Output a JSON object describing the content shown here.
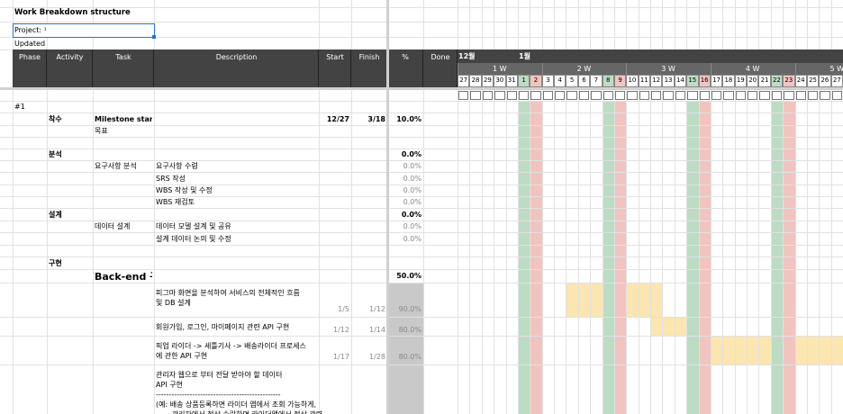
{
  "sheet": {
    "title": "Work Breakdown structure",
    "project": "Project: ¹",
    "updated": "Updated"
  },
  "header": {
    "columns": [
      "Phase",
      "Activity",
      "Task",
      "Description",
      "Start",
      "Finish",
      "%",
      "Done"
    ],
    "months": [
      "12월",
      "1월"
    ],
    "weeks": [
      "1 W",
      "2 W",
      "3 W",
      "4 W",
      "5 W"
    ],
    "days": [
      "27",
      "28",
      "29",
      "30",
      "31",
      "1",
      "2",
      "3",
      "4",
      "5",
      "6",
      "7",
      "8",
      "9",
      "10",
      "11",
      "12",
      "13",
      "14",
      "15",
      "16",
      "17",
      "18",
      "19",
      "20",
      "21",
      "22",
      "23",
      "24",
      "25",
      "26",
      "27"
    ]
  },
  "rows": [
    {
      "phase": "#1"
    },
    {
      "activity": "착수",
      "task": "Milestone start",
      "start": "12/27",
      "finish": "3/18",
      "percent": "10.0%"
    },
    {
      "task": "목표"
    },
    {
      "activity": "분석",
      "percent": "0.0%"
    },
    {
      "task": "요구사항 분석",
      "description": "요구사항 수렴",
      "percent": "0.0%"
    },
    {
      "description": "SRS 작성",
      "percent": "0.0%"
    },
    {
      "description": "WBS 작성 및 수정",
      "percent": "0.0%"
    },
    {
      "description": "WBS 재검토",
      "percent": "0.0%"
    },
    {
      "activity": "설계",
      "percent": "0.0%"
    },
    {
      "task": "데이터 설계",
      "description": "데이터 모델 설계 및 공유",
      "percent": "0.0%"
    },
    {
      "description": "설계 데이터 논의 및 수정",
      "percent": "0.0%"
    },
    {
      "activity": "구현"
    },
    {
      "task": "Back-end 구현",
      "percent": "50.0%"
    },
    {
      "description": "피그마 화면을 분석하여 서비스의 전체적인 흐름\n및 DB 설계",
      "start": "1/5",
      "finish": "1/12",
      "percent": "90.0%"
    },
    {
      "description": "회원가입, 로그인, 마이페이지 관련 API 구현",
      "start": "1/12",
      "finish": "1/14",
      "percent": "80.0%"
    },
    {
      "description": "픽업 라이더 -> 세틀기사 -> 배송라이더 프로세스\n에 관한 API 구현",
      "start": "1/17",
      "finish": "1/28",
      "percent": "80.0%"
    },
    {
      "description": "관리자 웹으로 부터 전달 받아야 할 데이터\nAPI 구현\n------------------------------------------------\n(예: 배송 상품등록하면 라이더 앱에서 조회 가능하게,\n       관리자에서 정산 수락하면 라이더앱에서 정산 관련"
    }
  ]
}
